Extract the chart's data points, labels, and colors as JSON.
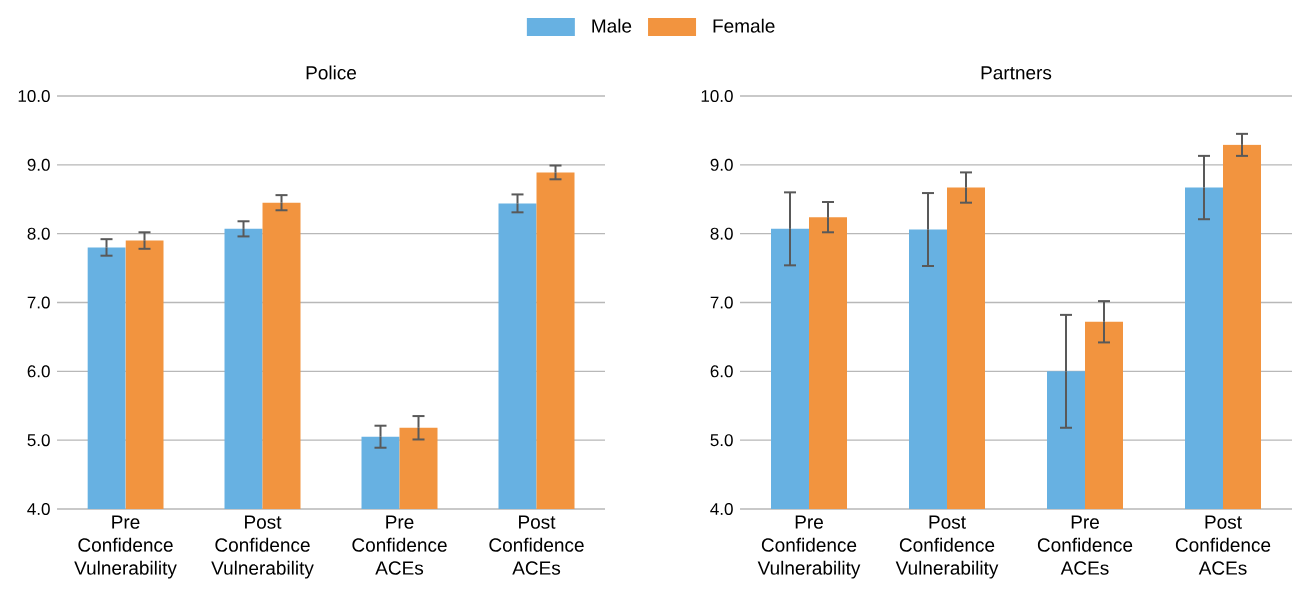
{
  "chart_data": [
    {
      "type": "bar",
      "title": "Police",
      "categories": [
        "Pre Confidence Vulnerability",
        "Post Confidence Vulnerability",
        "Pre Confidence ACEs",
        "Post Confidence ACEs"
      ],
      "series": [
        {
          "name": "Male",
          "color": "#67b1e2",
          "values": [
            7.8,
            8.07,
            5.05,
            8.44
          ],
          "errors": [
            0.12,
            0.11,
            0.16,
            0.13
          ]
        },
        {
          "name": "Female",
          "color": "#f2943f",
          "values": [
            7.9,
            8.45,
            5.18,
            8.89
          ],
          "errors": [
            0.12,
            0.11,
            0.17,
            0.1
          ]
        }
      ],
      "ylim": [
        4,
        10
      ],
      "yticks": [
        {
          "value": 4,
          "label": "4.0"
        },
        {
          "value": 5,
          "label": "5.0"
        },
        {
          "value": 6,
          "label": "6.0"
        },
        {
          "value": 7,
          "label": "7.0"
        },
        {
          "value": 8,
          "label": "8.0"
        },
        {
          "value": 9,
          "label": "9.0"
        },
        {
          "value": 10,
          "label": "10.0"
        }
      ],
      "grid": "y",
      "legend": "top"
    },
    {
      "type": "bar",
      "title": "Partners",
      "categories": [
        "Pre Confidence Vulnerability",
        "Post Confidence Vulnerability",
        "Pre Confidence ACEs",
        "Post Confidence ACEs"
      ],
      "series": [
        {
          "color": "#67b1e2",
          "values": [
            8.07,
            8.06,
            6.0,
            8.67
          ],
          "errors": [
            0.53,
            0.53,
            0.82,
            0.46
          ]
        },
        {
          "color": "#f2943f",
          "values": [
            8.24,
            8.67,
            6.72,
            9.29
          ],
          "errors": [
            0.22,
            0.22,
            0.3,
            0.16
          ]
        }
      ],
      "ylim": [
        4,
        10
      ],
      "yticks": [
        {
          "value": 4,
          "label": "4.0"
        },
        {
          "value": 5,
          "label": "5.0"
        },
        {
          "value": 6,
          "label": "6.0"
        },
        {
          "value": 7,
          "label": "7.0"
        },
        {
          "value": 8,
          "label": "8.0"
        },
        {
          "value": 9,
          "label": "9.0"
        },
        {
          "value": 10,
          "label": "10.0"
        }
      ],
      "grid": "y"
    }
  ]
}
